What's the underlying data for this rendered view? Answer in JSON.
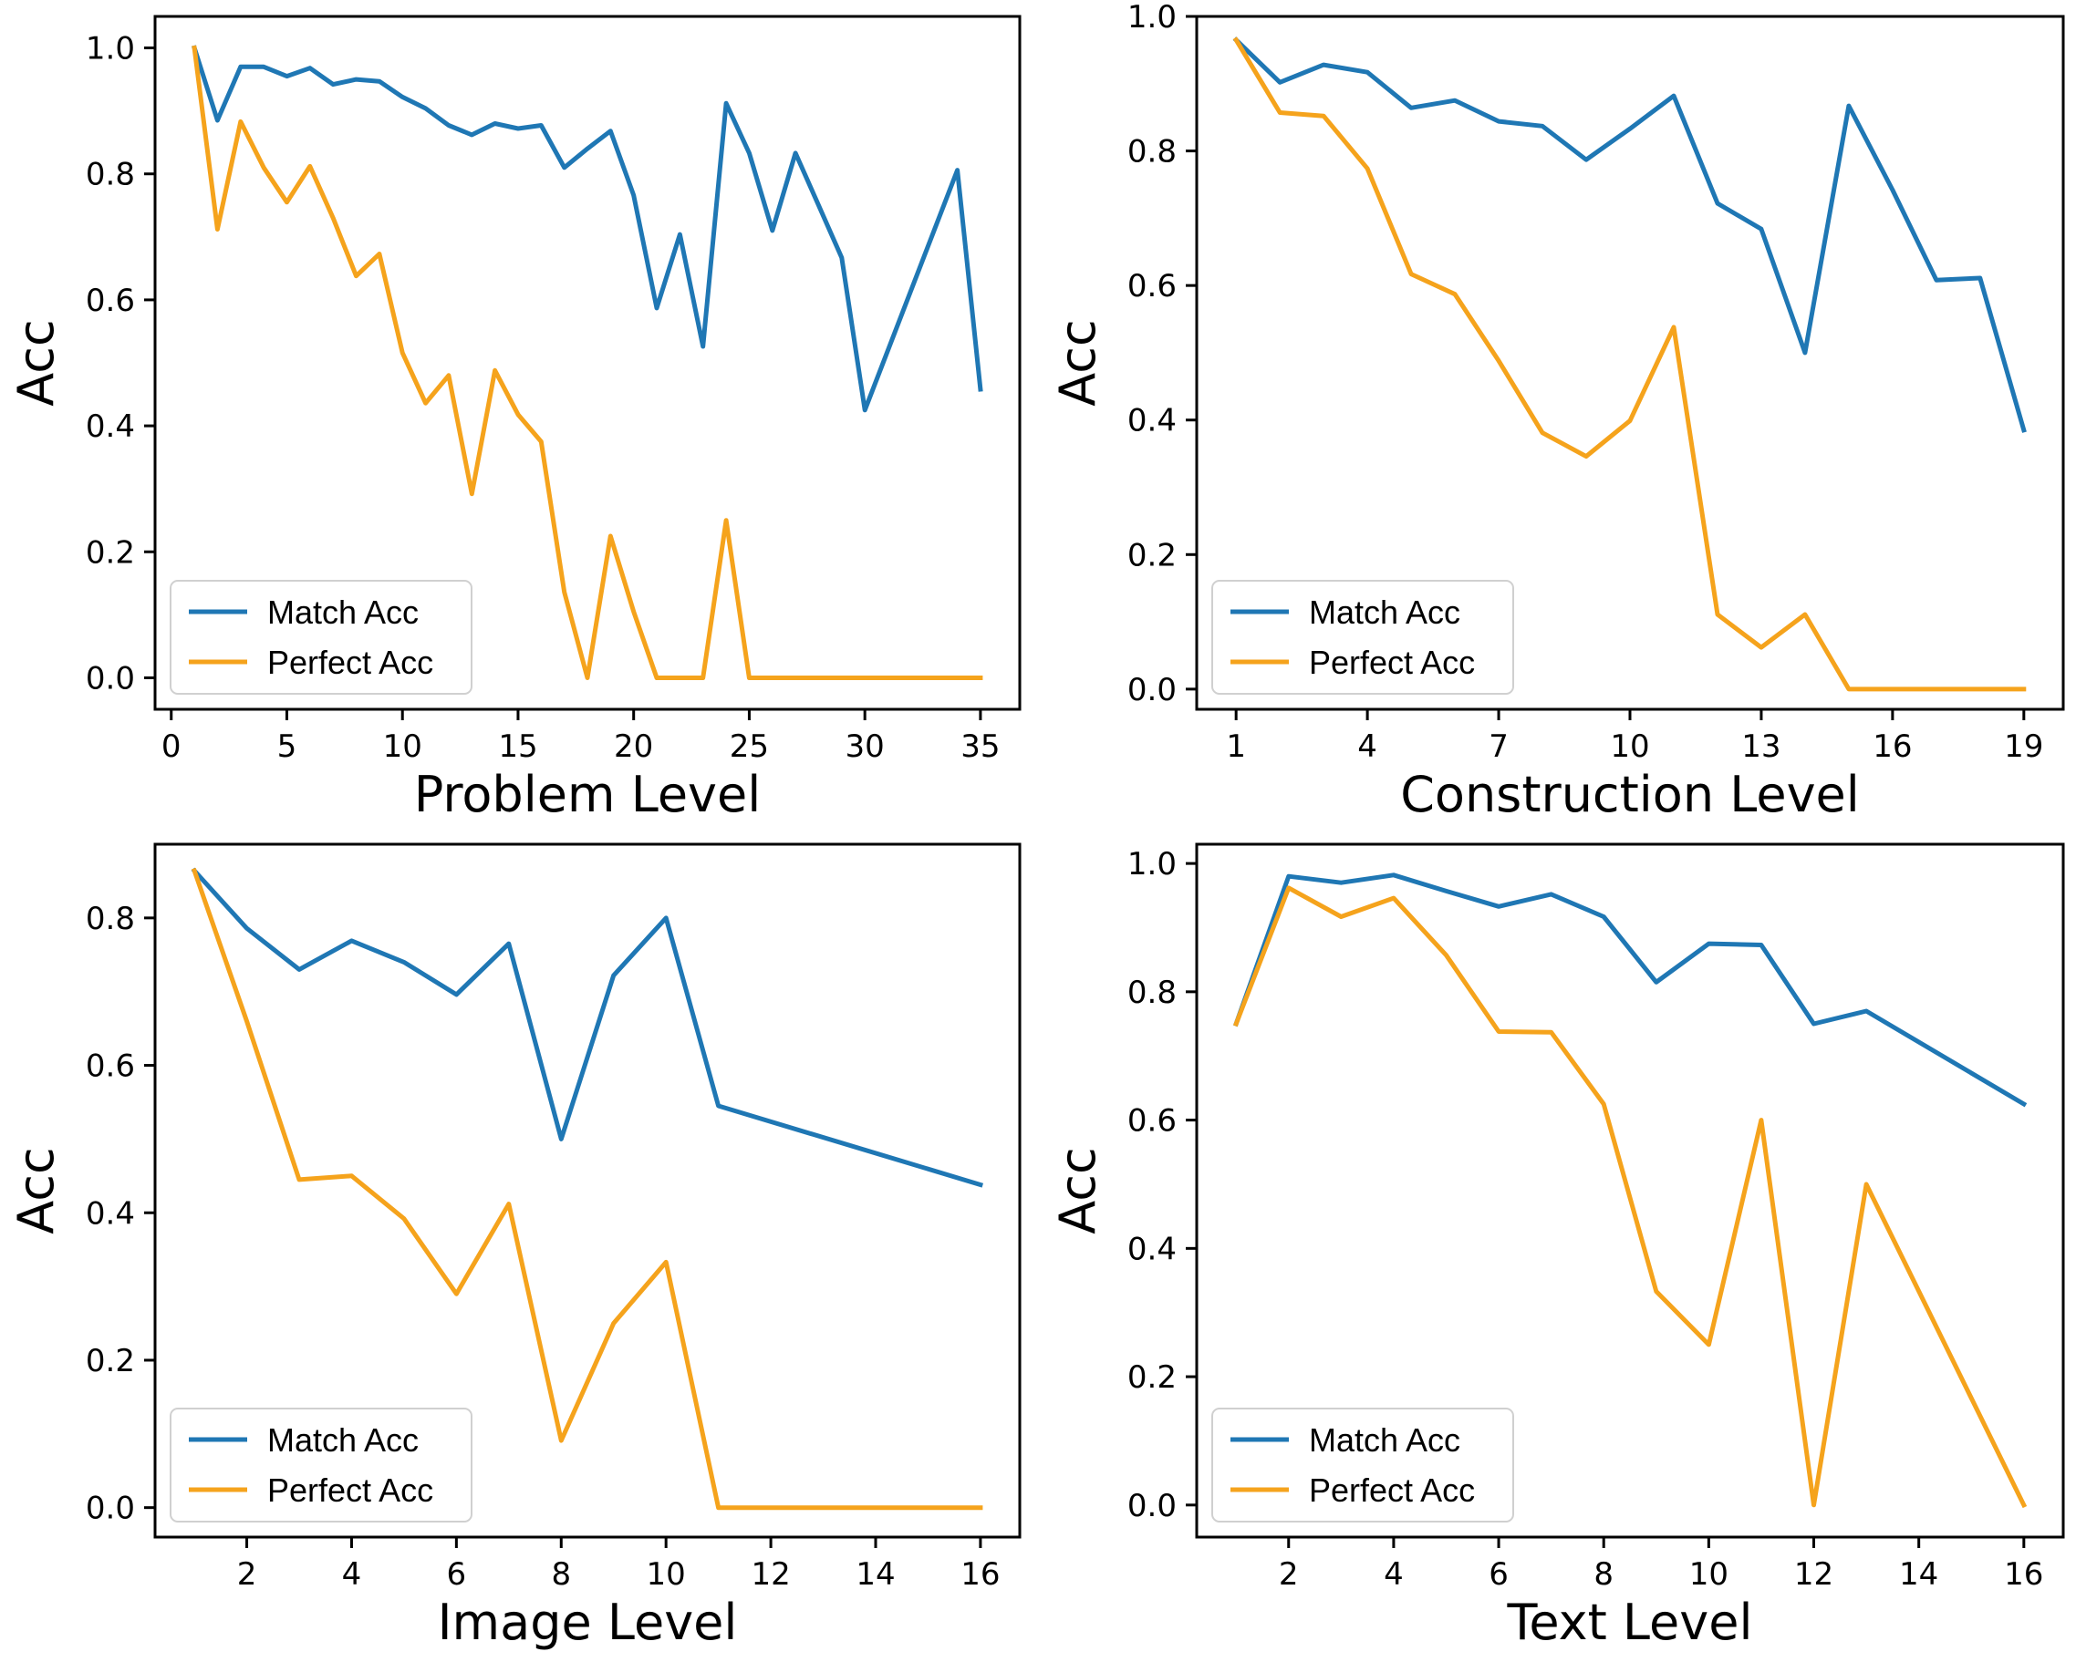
{
  "colors": {
    "match": "#1f77b4",
    "perfect": "#f5a31c"
  },
  "chart_data": [
    {
      "type": "line",
      "xlabel": "Problem Level",
      "ylabel": "Acc",
      "xlim": [
        -0.7,
        36.7
      ],
      "ylim": [
        -0.05,
        1.05
      ],
      "xticks": [
        0,
        5,
        10,
        15,
        20,
        25,
        30,
        35
      ],
      "xtick_labels": [
        "0",
        "5",
        "10",
        "15",
        "20",
        "25",
        "30",
        "35"
      ],
      "yticks": [
        0.0,
        0.2,
        0.4,
        0.6,
        0.8,
        1.0
      ],
      "ytick_labels": [
        "0.0",
        "0.2",
        "0.4",
        "0.6",
        "0.8",
        "1.0"
      ],
      "legend": {
        "position": "lower-left",
        "entries": [
          "Match Acc",
          "Perfect Acc"
        ]
      },
      "series": [
        {
          "name": "Match Acc",
          "x": [
            1,
            2,
            3,
            4,
            5,
            6,
            7,
            8,
            9,
            10,
            11,
            12,
            13,
            14,
            15,
            16,
            17,
            18,
            19,
            20,
            21,
            22,
            23,
            24,
            25,
            26,
            27,
            28,
            29,
            30,
            34,
            35
          ],
          "y": [
            1.0,
            0.885,
            0.97,
            0.97,
            0.955,
            0.968,
            0.942,
            0.95,
            0.947,
            0.922,
            0.904,
            0.877,
            0.862,
            0.88,
            0.872,
            0.877,
            0.81,
            0.84,
            0.868,
            0.766,
            0.587,
            0.704,
            0.526,
            0.912,
            0.833,
            0.71,
            0.833,
            0.75,
            0.667,
            0.425,
            0.806,
            0.458
          ]
        },
        {
          "name": "Perfect Acc",
          "x": [
            1,
            2,
            3,
            4,
            5,
            6,
            7,
            8,
            9,
            10,
            11,
            12,
            13,
            14,
            15,
            16,
            17,
            18,
            19,
            20,
            21,
            22,
            23,
            24,
            25,
            26,
            27,
            28,
            29,
            30,
            31,
            32,
            33,
            34,
            35
          ],
          "y": [
            1.0,
            0.712,
            0.883,
            0.81,
            0.755,
            0.812,
            0.73,
            0.638,
            0.673,
            0.516,
            0.436,
            0.48,
            0.292,
            0.488,
            0.418,
            0.375,
            0.136,
            0.0,
            0.225,
            0.105,
            0.0,
            0.0,
            0.0,
            0.25,
            0.0,
            0.0,
            0.0,
            0.0,
            0.0,
            0.0,
            0.0,
            0.0,
            0.0,
            0.0,
            0.0
          ]
        }
      ]
    },
    {
      "type": "line",
      "xlabel": "Construction Level",
      "ylabel": "Acc",
      "xlim": [
        0.1,
        19.9
      ],
      "ylim": [
        -0.03,
        1.0
      ],
      "xticks": [
        1,
        4,
        7,
        10,
        13,
        16,
        19
      ],
      "xtick_labels": [
        "1",
        "4",
        "7",
        "10",
        "13",
        "16",
        "19"
      ],
      "yticks": [
        0.0,
        0.2,
        0.4,
        0.6,
        0.8,
        1.0
      ],
      "ytick_labels": [
        "0.0",
        "0.2",
        "0.4",
        "0.6",
        "0.8",
        "1.0"
      ],
      "legend": {
        "position": "lower-left",
        "entries": [
          "Match Acc",
          "Perfect Acc"
        ]
      },
      "series": [
        {
          "name": "Match Acc",
          "x": [
            1,
            2,
            3,
            4,
            5,
            6,
            7,
            8,
            9,
            10,
            11,
            12,
            13,
            14,
            15,
            16,
            17,
            18,
            19
          ],
          "y": [
            0.965,
            0.902,
            0.928,
            0.917,
            0.864,
            0.875,
            0.844,
            0.837,
            0.787,
            0.833,
            0.882,
            0.722,
            0.684,
            0.5,
            0.867,
            0.742,
            0.608,
            0.611,
            0.385
          ]
        },
        {
          "name": "Perfect Acc",
          "x": [
            1,
            2,
            3,
            4,
            5,
            6,
            7,
            8,
            9,
            10,
            11,
            12,
            13,
            14,
            15,
            16,
            17,
            18,
            19
          ],
          "y": [
            0.965,
            0.857,
            0.852,
            0.774,
            0.617,
            0.587,
            0.488,
            0.381,
            0.346,
            0.399,
            0.538,
            0.111,
            0.062,
            0.111,
            0.0,
            0.0,
            0.0,
            0.0,
            0.0
          ]
        }
      ]
    },
    {
      "type": "line",
      "xlabel": "Image Level",
      "ylabel": "Acc",
      "xlim": [
        0.25,
        16.75
      ],
      "ylim": [
        -0.04,
        0.9
      ],
      "xticks": [
        2,
        4,
        6,
        8,
        10,
        12,
        14,
        16
      ],
      "xtick_labels": [
        "2",
        "4",
        "6",
        "8",
        "10",
        "12",
        "14",
        "16"
      ],
      "yticks": [
        0.0,
        0.2,
        0.4,
        0.6,
        0.8
      ],
      "ytick_labels": [
        "0.0",
        "0.2",
        "0.4",
        "0.6",
        "0.8"
      ],
      "legend": {
        "position": "lower-left",
        "entries": [
          "Match Acc",
          "Perfect Acc"
        ]
      },
      "series": [
        {
          "name": "Match Acc",
          "x": [
            1,
            2,
            3,
            4,
            5,
            6,
            7,
            8,
            9,
            10,
            11,
            16
          ],
          "y": [
            0.864,
            0.786,
            0.73,
            0.769,
            0.74,
            0.696,
            0.765,
            0.5,
            0.722,
            0.8,
            0.545,
            0.438
          ]
        },
        {
          "name": "Perfect Acc",
          "x": [
            1,
            2,
            3,
            4,
            5,
            6,
            7,
            8,
            9,
            10,
            11,
            16
          ],
          "y": [
            0.864,
            0.66,
            0.445,
            0.45,
            0.392,
            0.29,
            0.412,
            0.091,
            0.25,
            0.333,
            0.0,
            0.0
          ]
        }
      ]
    },
    {
      "type": "line",
      "xlabel": "Text Level",
      "ylabel": "Acc",
      "xlim": [
        0.25,
        16.75
      ],
      "ylim": [
        -0.05,
        1.03
      ],
      "xticks": [
        2,
        4,
        6,
        8,
        10,
        12,
        14,
        16
      ],
      "xtick_labels": [
        "2",
        "4",
        "6",
        "8",
        "10",
        "12",
        "14",
        "16"
      ],
      "yticks": [
        0.0,
        0.2,
        0.4,
        0.6,
        0.8,
        1.0
      ],
      "ytick_labels": [
        "0.0",
        "0.2",
        "0.4",
        "0.6",
        "0.8",
        "1.0"
      ],
      "legend": {
        "position": "lower-left",
        "entries": [
          "Match Acc",
          "Perfect Acc"
        ]
      },
      "series": [
        {
          "name": "Match Acc",
          "x": [
            1,
            2,
            3,
            4,
            5,
            6,
            7,
            8,
            9,
            10,
            11,
            12,
            13,
            16
          ],
          "y": [
            0.75,
            0.98,
            0.97,
            0.982,
            0.957,
            0.933,
            0.952,
            0.917,
            0.815,
            0.875,
            0.873,
            0.75,
            0.77,
            0.625
          ]
        },
        {
          "name": "Perfect Acc",
          "x": [
            1,
            2,
            3,
            4,
            5,
            6,
            7,
            8,
            9,
            10,
            11,
            12,
            13,
            16
          ],
          "y": [
            0.75,
            0.962,
            0.917,
            0.946,
            0.857,
            0.738,
            0.737,
            0.625,
            0.333,
            0.25,
            0.6,
            0.0,
            0.5,
            0.0
          ]
        }
      ]
    }
  ]
}
